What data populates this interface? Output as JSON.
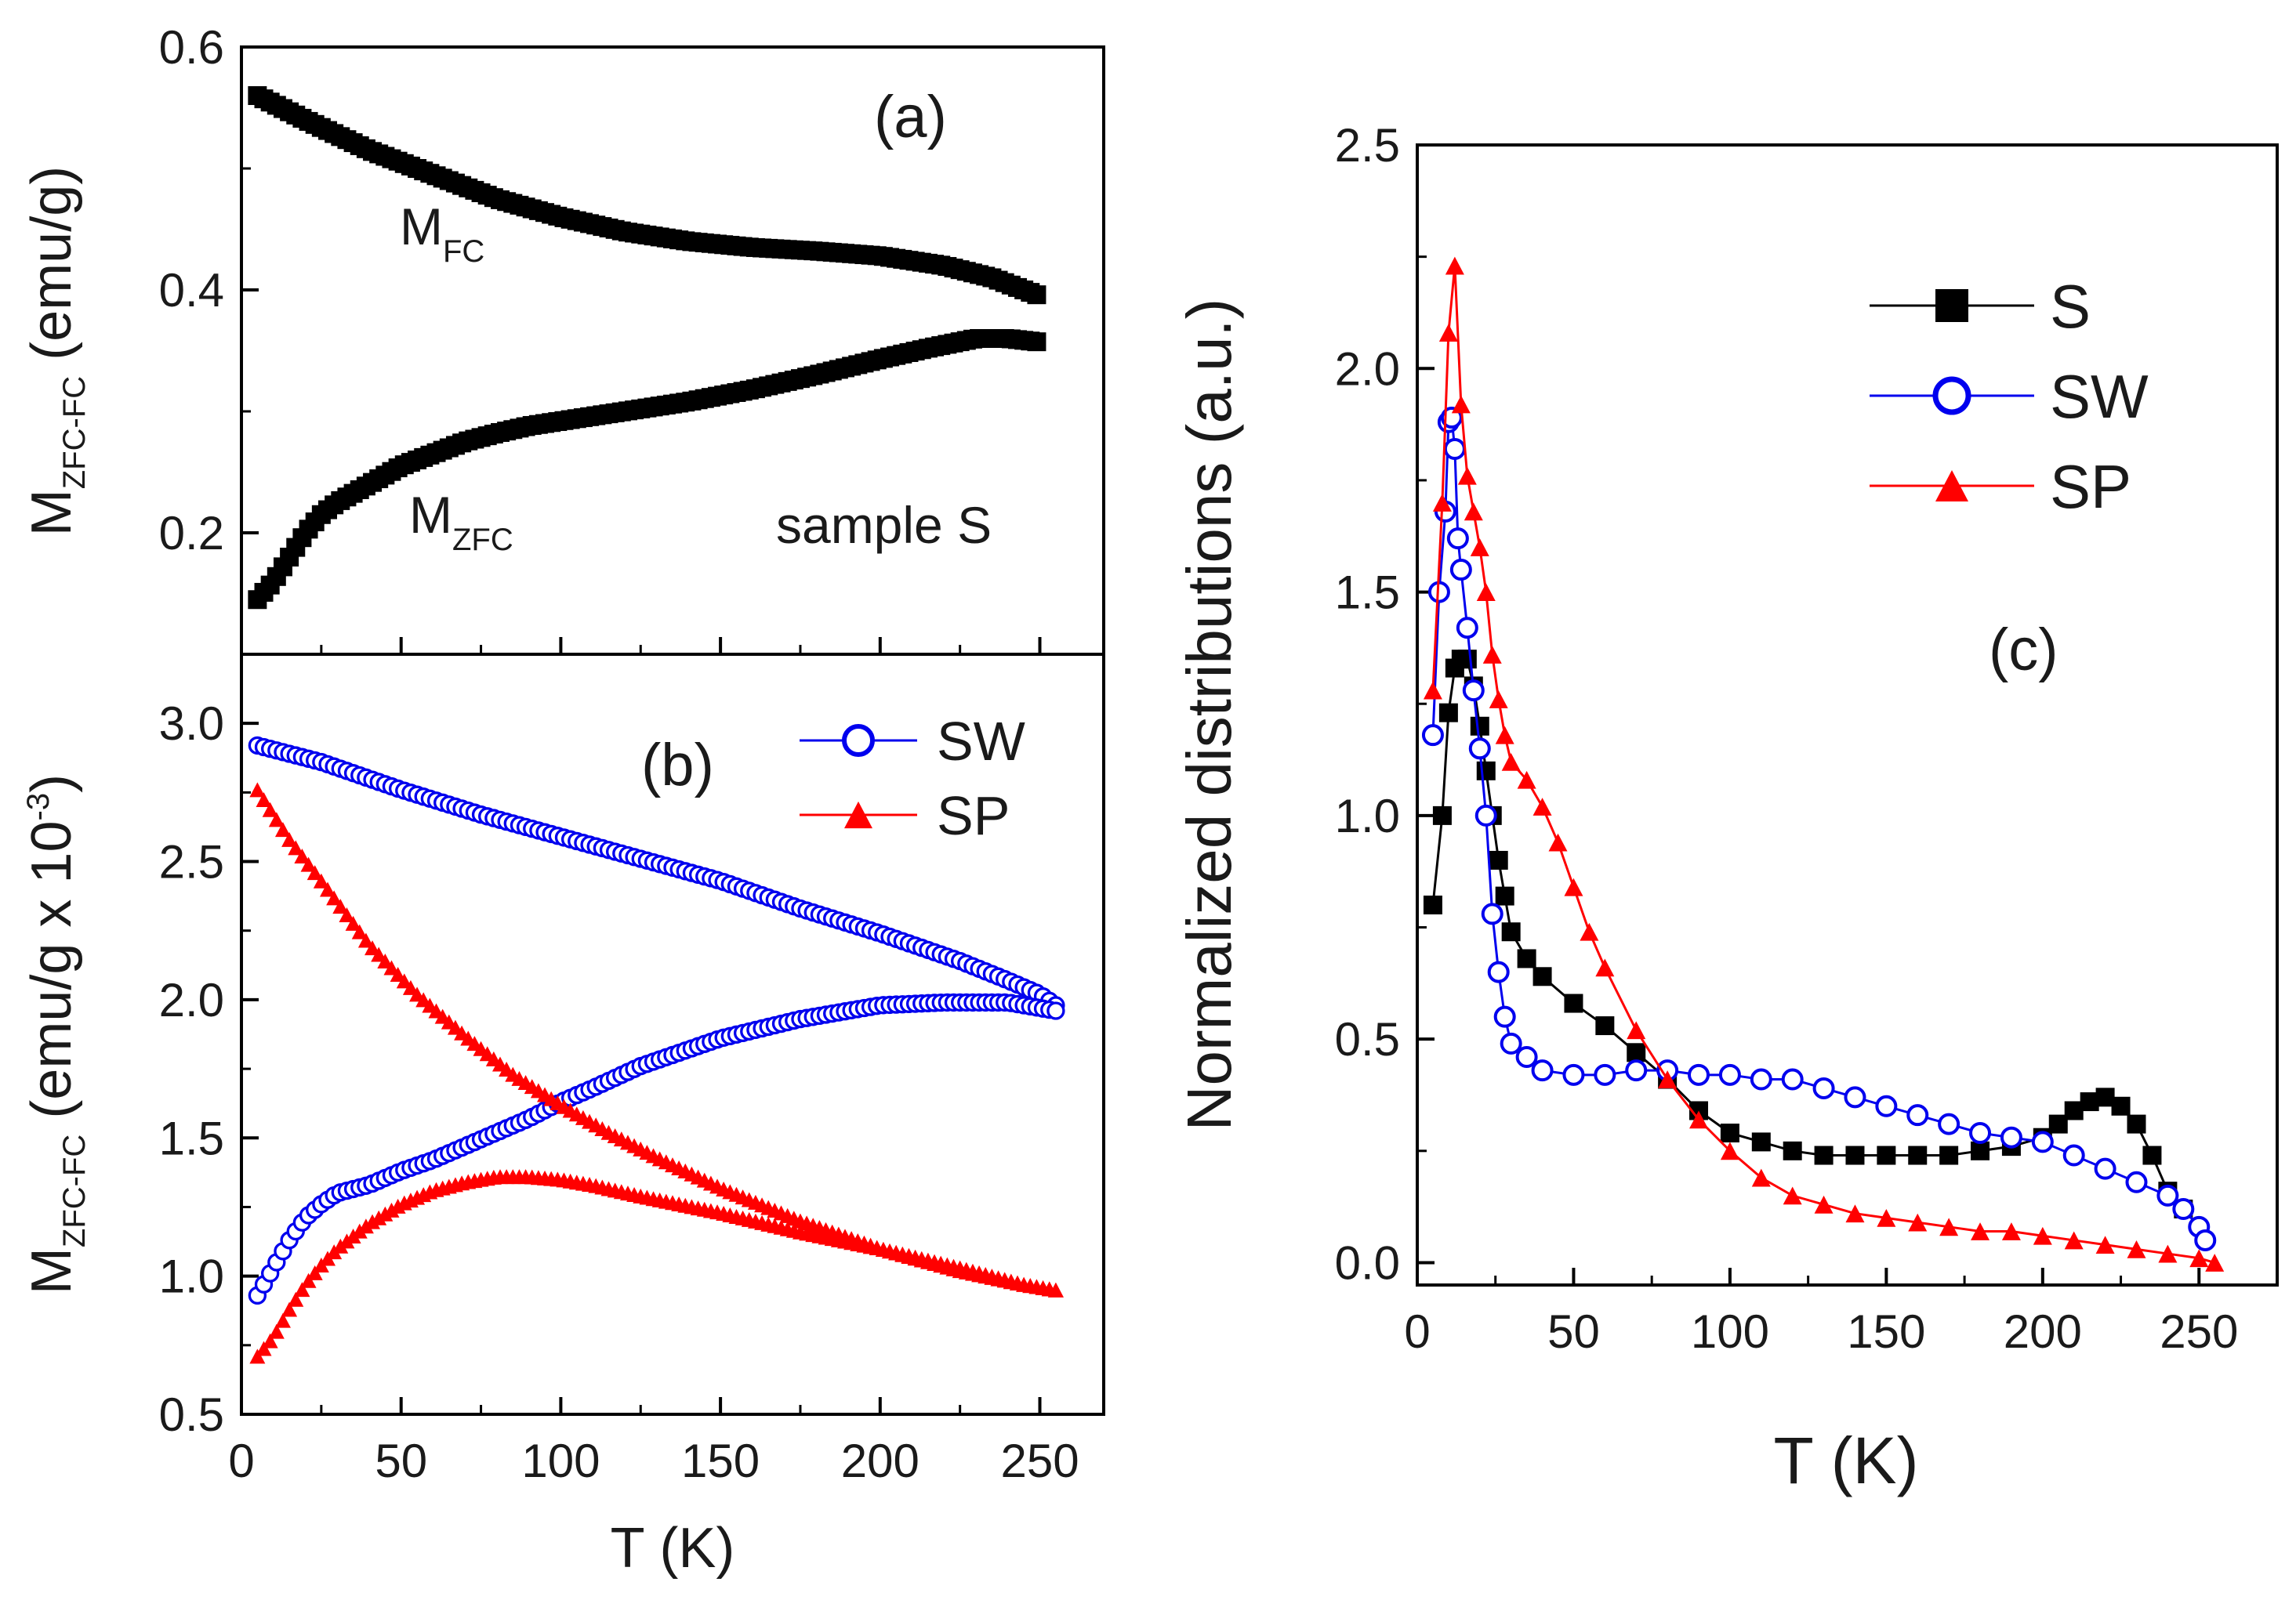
{
  "chart_data": [
    {
      "panel": "a",
      "type": "scatter",
      "panel_label": "(a)",
      "ylabel_main": "M",
      "ylabel_sub": "ZFC-FC",
      "ylabel_units": " (emu/g)",
      "xlim": [
        0,
        270
      ],
      "ylim": [
        0.1,
        0.6
      ],
      "yticks": [
        0.2,
        0.4,
        0.6
      ],
      "ytick_labels": [
        "0.2",
        "0.4",
        "0.6"
      ],
      "annotations": {
        "mfc_main": "M",
        "mfc_sub": "FC",
        "mzfc_main": "M",
        "mzfc_sub": "ZFC",
        "sample": "sample S"
      },
      "series": [
        {
          "name": "M_FC",
          "color": "#000000",
          "marker": "square",
          "x": [
            5,
            20,
            40,
            60,
            80,
            100,
            120,
            140,
            160,
            180,
            200,
            220,
            235,
            250
          ],
          "y": [
            0.56,
            0.54,
            0.515,
            0.495,
            0.475,
            0.46,
            0.448,
            0.44,
            0.435,
            0.432,
            0.428,
            0.42,
            0.41,
            0.395
          ]
        },
        {
          "name": "M_ZFC",
          "color": "#000000",
          "marker": "square",
          "x": [
            5,
            10,
            15,
            20,
            25,
            30,
            40,
            50,
            60,
            70,
            80,
            90,
            100,
            120,
            140,
            160,
            180,
            200,
            215,
            230,
            240,
            250
          ],
          "y": [
            0.145,
            0.16,
            0.18,
            0.2,
            0.215,
            0.225,
            0.24,
            0.255,
            0.265,
            0.275,
            0.282,
            0.288,
            0.292,
            0.3,
            0.308,
            0.318,
            0.33,
            0.343,
            0.352,
            0.36,
            0.36,
            0.357
          ]
        }
      ]
    },
    {
      "panel": "b",
      "type": "scatter",
      "panel_label": "(b)",
      "ylabel_main": "M",
      "ylabel_sub": "ZFC-FC",
      "ylabel_units_pre": " (emu/g x 10",
      "ylabel_units_sup": "-3",
      "ylabel_units_post": ")",
      "xlabel": "T (K)",
      "xlim": [
        0,
        270
      ],
      "ylim": [
        0.5,
        3.25
      ],
      "xticks": [
        0,
        50,
        100,
        150,
        200,
        250
      ],
      "xtick_labels": [
        "0",
        "50",
        "100",
        "150",
        "200",
        "250"
      ],
      "yticks": [
        0.5,
        1.0,
        1.5,
        2.0,
        2.5,
        3.0
      ],
      "ytick_labels": [
        "0.5",
        "1.0",
        "1.5",
        "2.0",
        "2.5",
        "3.0"
      ],
      "legend": [
        {
          "label": "SW",
          "color": "#0000ee",
          "marker": "open-circle"
        },
        {
          "label": "SP",
          "color": "#ff0000",
          "marker": "triangle"
        }
      ],
      "series": [
        {
          "name": "SW FC",
          "color": "#0000ee",
          "marker": "open-circle",
          "x": [
            5,
            25,
            50,
            75,
            100,
            125,
            150,
            175,
            200,
            225,
            240,
            250,
            255
          ],
          "y": [
            2.92,
            2.86,
            2.76,
            2.67,
            2.59,
            2.51,
            2.43,
            2.33,
            2.24,
            2.14,
            2.07,
            2.02,
            1.98
          ]
        },
        {
          "name": "SW ZFC",
          "color": "#0000ee",
          "marker": "open-circle",
          "x": [
            5,
            10,
            15,
            20,
            25,
            30,
            40,
            50,
            60,
            70,
            80,
            90,
            100,
            110,
            125,
            150,
            175,
            200,
            220,
            240,
            250,
            255
          ],
          "y": [
            0.93,
            1.03,
            1.13,
            1.21,
            1.26,
            1.3,
            1.33,
            1.38,
            1.42,
            1.47,
            1.52,
            1.57,
            1.63,
            1.68,
            1.76,
            1.86,
            1.93,
            1.98,
            1.99,
            1.99,
            1.97,
            1.96
          ]
        },
        {
          "name": "SP FC",
          "color": "#ff0000",
          "marker": "triangle",
          "x": [
            5,
            15,
            25,
            40,
            55,
            70,
            85,
            100,
            115,
            130,
            150,
            175,
            200,
            225,
            245,
            255
          ],
          "y": [
            2.76,
            2.58,
            2.43,
            2.2,
            2.02,
            1.87,
            1.73,
            1.62,
            1.52,
            1.43,
            1.32,
            1.2,
            1.1,
            1.02,
            0.97,
            0.95
          ]
        },
        {
          "name": "SP ZFC",
          "color": "#ff0000",
          "marker": "triangle",
          "x": [
            5,
            10,
            15,
            20,
            25,
            30,
            40,
            50,
            60,
            70,
            80,
            90,
            100,
            110,
            125,
            150,
            175,
            200,
            225,
            245,
            255
          ],
          "y": [
            0.71,
            0.78,
            0.88,
            0.97,
            1.04,
            1.1,
            1.19,
            1.26,
            1.31,
            1.34,
            1.36,
            1.36,
            1.35,
            1.33,
            1.29,
            1.23,
            1.16,
            1.1,
            1.03,
            0.97,
            0.95
          ]
        }
      ]
    },
    {
      "panel": "c",
      "type": "line",
      "panel_label": "(c)",
      "ylabel": "Normalized distributions (a.u.)",
      "xlabel": "T (K)",
      "xlim": [
        0,
        275
      ],
      "ylim": [
        -0.05,
        2.5
      ],
      "xticks": [
        0,
        50,
        100,
        150,
        200,
        250
      ],
      "xtick_labels": [
        "0",
        "50",
        "100",
        "150",
        "200",
        "250"
      ],
      "yticks": [
        0.0,
        0.5,
        1.0,
        1.5,
        2.0,
        2.5
      ],
      "ytick_labels": [
        "0.0",
        "0.5",
        "1.0",
        "1.5",
        "2.0",
        "2.5"
      ],
      "legend": [
        {
          "label": "S",
          "color": "#000000",
          "marker": "square"
        },
        {
          "label": "SW",
          "color": "#0000ee",
          "marker": "open-circle"
        },
        {
          "label": "SP",
          "color": "#ff0000",
          "marker": "triangle"
        }
      ],
      "series": [
        {
          "name": "S",
          "color": "#000000",
          "marker": "square",
          "x": [
            5,
            8,
            10,
            12,
            14,
            16,
            18,
            20,
            22,
            24,
            26,
            28,
            30,
            35,
            40,
            50,
            60,
            70,
            80,
            90,
            100,
            110,
            120,
            130,
            140,
            150,
            160,
            170,
            180,
            190,
            200,
            205,
            210,
            215,
            220,
            225,
            230,
            235,
            240,
            245
          ],
          "y": [
            0.8,
            1.0,
            1.23,
            1.33,
            1.35,
            1.35,
            1.29,
            1.2,
            1.1,
            1.0,
            0.9,
            0.82,
            0.74,
            0.68,
            0.64,
            0.58,
            0.53,
            0.47,
            0.41,
            0.34,
            0.29,
            0.27,
            0.25,
            0.24,
            0.24,
            0.24,
            0.24,
            0.24,
            0.25,
            0.26,
            0.28,
            0.31,
            0.34,
            0.36,
            0.37,
            0.35,
            0.31,
            0.24,
            0.16,
            0.12
          ]
        },
        {
          "name": "SW",
          "color": "#0000ee",
          "marker": "open-circle",
          "x": [
            5,
            7,
            9,
            10,
            11,
            12,
            13,
            14,
            16,
            18,
            20,
            22,
            24,
            26,
            28,
            30,
            35,
            40,
            50,
            60,
            70,
            80,
            90,
            100,
            110,
            120,
            130,
            140,
            150,
            160,
            170,
            180,
            190,
            200,
            210,
            220,
            230,
            240,
            245,
            250,
            252
          ],
          "y": [
            1.18,
            1.5,
            1.68,
            1.88,
            1.89,
            1.82,
            1.62,
            1.55,
            1.42,
            1.28,
            1.15,
            1.0,
            0.78,
            0.65,
            0.55,
            0.49,
            0.46,
            0.43,
            0.42,
            0.42,
            0.43,
            0.43,
            0.42,
            0.42,
            0.41,
            0.41,
            0.39,
            0.37,
            0.35,
            0.33,
            0.31,
            0.29,
            0.28,
            0.27,
            0.24,
            0.21,
            0.18,
            0.15,
            0.12,
            0.08,
            0.05
          ]
        },
        {
          "name": "SP",
          "color": "#ff0000",
          "marker": "triangle",
          "x": [
            5,
            8,
            10,
            12,
            14,
            16,
            18,
            20,
            22,
            24,
            26,
            28,
            30,
            35,
            40,
            45,
            50,
            55,
            60,
            70,
            80,
            90,
            100,
            110,
            120,
            130,
            140,
            150,
            160,
            170,
            180,
            190,
            200,
            210,
            220,
            230,
            240,
            250,
            255
          ],
          "y": [
            1.28,
            1.7,
            2.08,
            2.23,
            1.92,
            1.76,
            1.68,
            1.6,
            1.5,
            1.36,
            1.26,
            1.18,
            1.12,
            1.08,
            1.02,
            0.94,
            0.84,
            0.74,
            0.66,
            0.52,
            0.41,
            0.32,
            0.25,
            0.19,
            0.15,
            0.13,
            0.11,
            0.1,
            0.09,
            0.08,
            0.07,
            0.07,
            0.06,
            0.05,
            0.04,
            0.03,
            0.02,
            0.01,
            0.0
          ]
        }
      ]
    }
  ]
}
